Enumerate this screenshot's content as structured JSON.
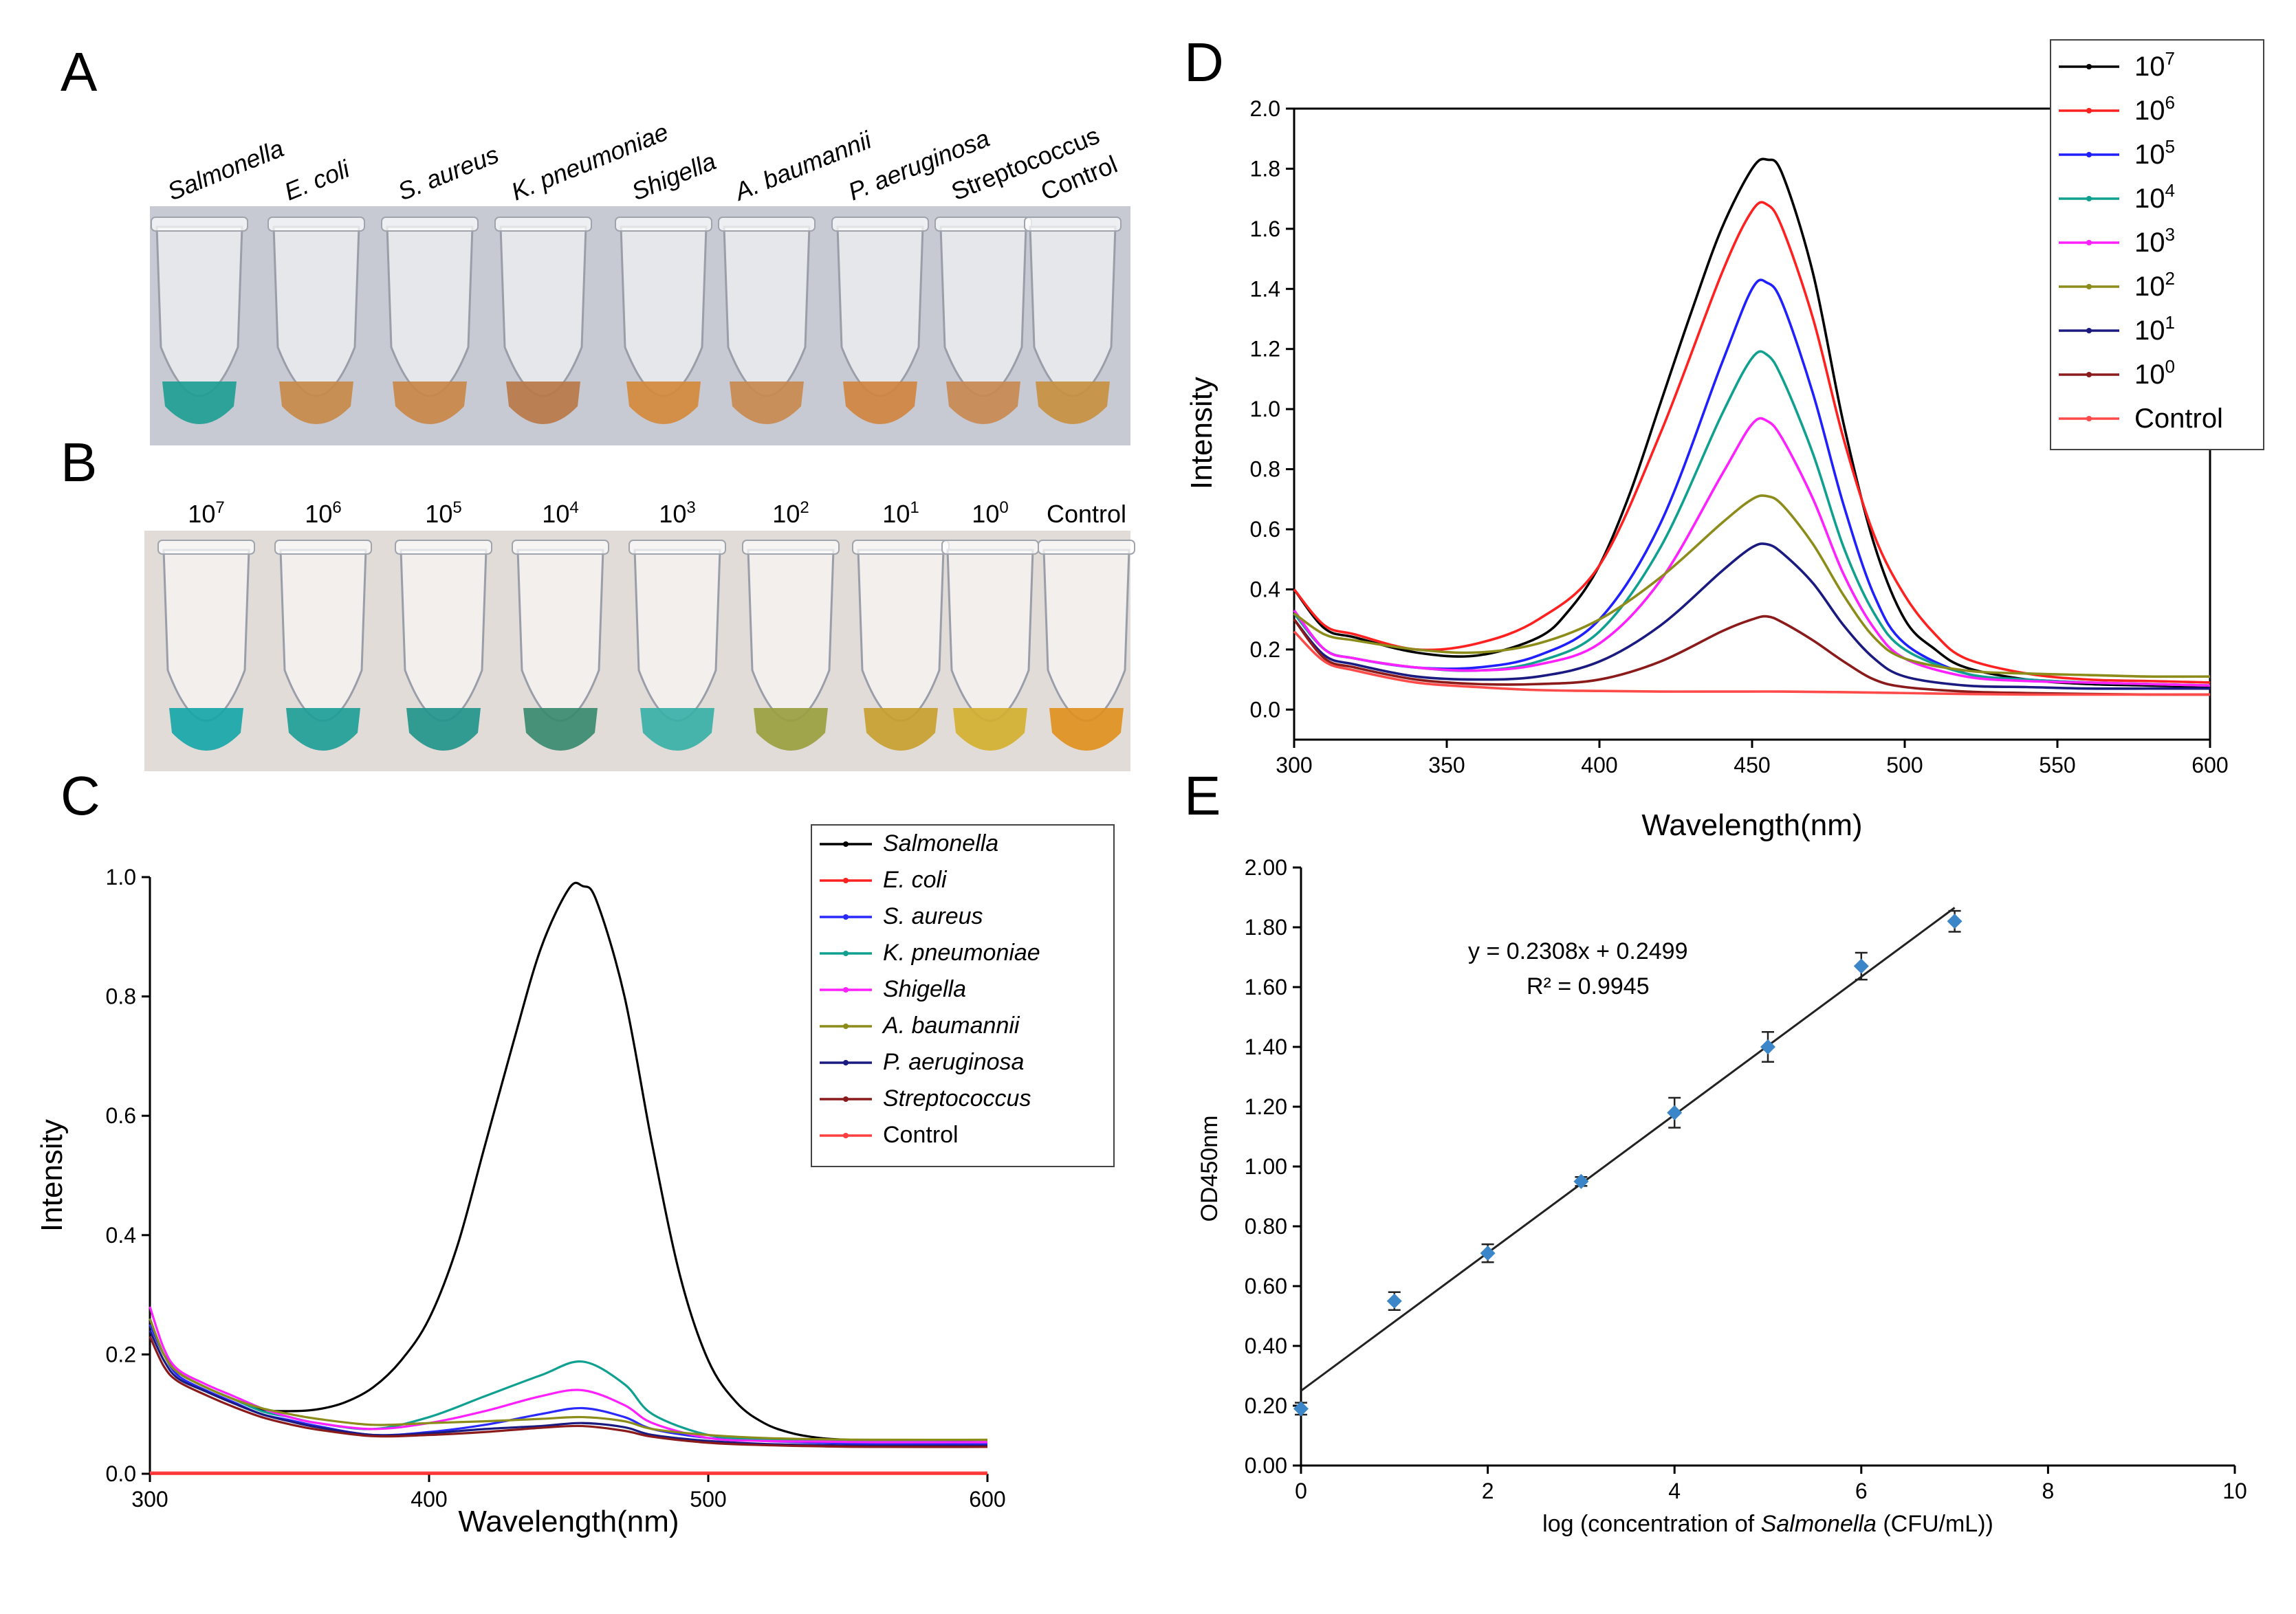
{
  "panel_labels": {
    "A": "A",
    "B": "B",
    "C": "C",
    "D": "D",
    "E": "E"
  },
  "photoA": {
    "labels": [
      "Salmonella",
      "E. coli",
      "S. aureus",
      "K. pneumoniae",
      "Shigella",
      "A. baumannii",
      "P. aeruginosa",
      "Streptococcus",
      "Control"
    ],
    "italic": [
      true,
      true,
      true,
      true,
      true,
      true,
      true,
      false,
      false
    ],
    "liquid_colors": [
      "#1e9e92",
      "#c88a4a",
      "#c98848",
      "#b97a48",
      "#d48a3c",
      "#c98a50",
      "#d08440",
      "#c88a52",
      "#c89040"
    ]
  },
  "photoB": {
    "bases": [
      "10",
      "10",
      "10",
      "10",
      "10",
      "10",
      "10",
      "10",
      "Control"
    ],
    "exponents": [
      "7",
      "6",
      "5",
      "4",
      "3",
      "2",
      "1",
      "0",
      ""
    ],
    "liquid_colors": [
      "#17a6a8",
      "#1e9e98",
      "#22958c",
      "#3a8a70",
      "#3ab0a8",
      "#9aa040",
      "#c8a030",
      "#d4b030",
      "#e09020"
    ]
  },
  "chart_data": [
    {
      "id": "C",
      "type": "line",
      "xlabel": "Wavelength(nm)",
      "ylabel": "Intensity",
      "xlim": [
        300,
        600
      ],
      "ylim": [
        0.0,
        1.0
      ],
      "xticks": [
        "300",
        "400",
        "500",
        "600"
      ],
      "yticks": [
        "0.0",
        "0.2",
        "0.4",
        "0.6",
        "0.8",
        "1.0"
      ],
      "legend_position": "top-right",
      "series": [
        {
          "name": "Salmonella",
          "italic": true,
          "color": "#000000",
          "x": [
            300,
            305,
            310,
            320,
            330,
            340,
            350,
            360,
            370,
            380,
            390,
            400,
            410,
            420,
            430,
            440,
            450,
            455,
            460,
            470,
            480,
            490,
            500,
            510,
            520,
            530,
            540,
            550,
            560,
            580,
            600
          ],
          "y": [
            0.25,
            0.2,
            0.17,
            0.145,
            0.125,
            0.108,
            0.105,
            0.108,
            0.12,
            0.145,
            0.19,
            0.26,
            0.38,
            0.55,
            0.72,
            0.88,
            0.98,
            0.985,
            0.96,
            0.8,
            0.55,
            0.33,
            0.19,
            0.12,
            0.085,
            0.068,
            0.06,
            0.057,
            0.055,
            0.054,
            0.053
          ]
        },
        {
          "name": "E. coli",
          "italic": true,
          "color": "#ff2020",
          "x": [
            300,
            600
          ],
          "y": [
            0.0,
            0.0
          ]
        },
        {
          "name": "S. aureus",
          "italic": true,
          "color": "#2a2aff",
          "x": [
            300,
            305,
            310,
            320,
            330,
            340,
            350,
            360,
            380,
            400,
            420,
            440,
            455,
            470,
            480,
            500,
            520,
            540,
            560,
            600
          ],
          "y": [
            0.25,
            0.2,
            0.165,
            0.14,
            0.12,
            0.1,
            0.09,
            0.08,
            0.065,
            0.07,
            0.082,
            0.1,
            0.11,
            0.095,
            0.075,
            0.06,
            0.055,
            0.052,
            0.05,
            0.05
          ]
        },
        {
          "name": "K. pneumoniae",
          "italic": true,
          "color": "#10a090",
          "x": [
            300,
            305,
            310,
            320,
            330,
            340,
            350,
            360,
            380,
            400,
            420,
            440,
            455,
            470,
            480,
            500,
            520,
            540,
            560,
            600
          ],
          "y": [
            0.26,
            0.2,
            0.17,
            0.145,
            0.125,
            0.105,
            0.095,
            0.085,
            0.075,
            0.095,
            0.13,
            0.165,
            0.188,
            0.15,
            0.1,
            0.065,
            0.058,
            0.055,
            0.054,
            0.053
          ]
        },
        {
          "name": "Shigella",
          "italic": true,
          "color": "#ff20ff",
          "x": [
            300,
            305,
            310,
            320,
            330,
            340,
            350,
            360,
            380,
            400,
            420,
            440,
            455,
            470,
            480,
            500,
            520,
            540,
            560,
            600
          ],
          "y": [
            0.28,
            0.21,
            0.175,
            0.15,
            0.13,
            0.11,
            0.095,
            0.085,
            0.075,
            0.085,
            0.105,
            0.13,
            0.14,
            0.115,
            0.085,
            0.06,
            0.055,
            0.054,
            0.053,
            0.053
          ]
        },
        {
          "name": "A. baumannii",
          "italic": true,
          "color": "#8c8c1a",
          "x": [
            300,
            305,
            310,
            320,
            330,
            340,
            350,
            360,
            380,
            400,
            420,
            440,
            455,
            470,
            480,
            500,
            520,
            540,
            560,
            600
          ],
          "y": [
            0.26,
            0.2,
            0.17,
            0.145,
            0.125,
            0.11,
            0.1,
            0.092,
            0.082,
            0.085,
            0.088,
            0.092,
            0.095,
            0.088,
            0.075,
            0.065,
            0.06,
            0.058,
            0.057,
            0.057
          ]
        },
        {
          "name": "P. aeruginosa",
          "italic": true,
          "color": "#1a1a80",
          "x": [
            300,
            305,
            310,
            320,
            330,
            340,
            350,
            360,
            380,
            400,
            420,
            440,
            455,
            470,
            480,
            500,
            520,
            540,
            560,
            600
          ],
          "y": [
            0.24,
            0.19,
            0.16,
            0.138,
            0.118,
            0.1,
            0.088,
            0.078,
            0.065,
            0.068,
            0.075,
            0.08,
            0.085,
            0.078,
            0.065,
            0.055,
            0.05,
            0.048,
            0.047,
            0.047
          ]
        },
        {
          "name": "Streptococcus",
          "italic": true,
          "color": "#8b1a1a",
          "x": [
            300,
            305,
            310,
            320,
            330,
            340,
            350,
            360,
            380,
            400,
            420,
            440,
            455,
            470,
            480,
            500,
            520,
            540,
            560,
            600
          ],
          "y": [
            0.23,
            0.18,
            0.155,
            0.132,
            0.112,
            0.095,
            0.083,
            0.074,
            0.063,
            0.065,
            0.07,
            0.077,
            0.08,
            0.072,
            0.062,
            0.052,
            0.048,
            0.046,
            0.045,
            0.045
          ]
        },
        {
          "name": "Control",
          "italic": false,
          "color": "#ff4040",
          "x": [
            300,
            600
          ],
          "y": [
            0.002,
            0.002
          ]
        }
      ]
    },
    {
      "id": "D",
      "type": "line",
      "xlabel": "Wavelength(nm)",
      "ylabel": "Intensity",
      "xlim": [
        300,
        600
      ],
      "ylim": [
        -0.1,
        2.0
      ],
      "xticks": [
        "300",
        "350",
        "400",
        "450",
        "500",
        "550",
        "600"
      ],
      "yticks": [
        "0.0",
        "0.2",
        "0.4",
        "0.6",
        "0.8",
        "1.0",
        "1.2",
        "1.4",
        "1.6",
        "1.8",
        "2.0"
      ],
      "legend_position": "top-right outside",
      "series": [
        {
          "name": "10",
          "sup": "7",
          "color": "#000000",
          "x": [
            300,
            310,
            320,
            340,
            360,
            380,
            390,
            400,
            410,
            420,
            430,
            440,
            450,
            455,
            460,
            470,
            480,
            490,
            500,
            510,
            520,
            540,
            560,
            580,
            600
          ],
          "y": [
            0.4,
            0.27,
            0.24,
            0.19,
            0.18,
            0.24,
            0.33,
            0.48,
            0.72,
            1.02,
            1.32,
            1.6,
            1.8,
            1.83,
            1.78,
            1.45,
            0.95,
            0.55,
            0.3,
            0.2,
            0.14,
            0.1,
            0.085,
            0.08,
            0.075
          ]
        },
        {
          "name": "10",
          "sup": "6",
          "color": "#ff2020",
          "x": [
            300,
            310,
            320,
            340,
            360,
            380,
            400,
            420,
            440,
            450,
            455,
            460,
            470,
            480,
            490,
            500,
            510,
            520,
            540,
            560,
            580,
            600
          ],
          "y": [
            0.4,
            0.28,
            0.25,
            0.2,
            0.22,
            0.3,
            0.48,
            0.92,
            1.45,
            1.66,
            1.68,
            1.6,
            1.3,
            0.9,
            0.58,
            0.38,
            0.25,
            0.17,
            0.12,
            0.1,
            0.095,
            0.09
          ]
        },
        {
          "name": "10",
          "sup": "5",
          "color": "#2020ff",
          "x": [
            300,
            310,
            320,
            340,
            360,
            380,
            400,
            420,
            440,
            450,
            455,
            460,
            470,
            480,
            490,
            500,
            520,
            540,
            560,
            580,
            600
          ],
          "y": [
            0.33,
            0.2,
            0.17,
            0.14,
            0.14,
            0.18,
            0.3,
            0.62,
            1.15,
            1.4,
            1.42,
            1.35,
            1.05,
            0.68,
            0.38,
            0.22,
            0.12,
            0.1,
            0.09,
            0.085,
            0.08
          ]
        },
        {
          "name": "10",
          "sup": "4",
          "color": "#10a090",
          "x": [
            300,
            310,
            320,
            340,
            360,
            380,
            400,
            420,
            440,
            450,
            455,
            460,
            470,
            480,
            490,
            500,
            520,
            540,
            560,
            580,
            600
          ],
          "y": [
            0.32,
            0.2,
            0.17,
            0.14,
            0.13,
            0.16,
            0.26,
            0.54,
            0.98,
            1.17,
            1.18,
            1.1,
            0.85,
            0.54,
            0.32,
            0.2,
            0.12,
            0.1,
            0.09,
            0.085,
            0.08
          ]
        },
        {
          "name": "10",
          "sup": "3",
          "color": "#ff20ff",
          "x": [
            300,
            310,
            320,
            340,
            360,
            380,
            400,
            420,
            440,
            450,
            455,
            460,
            470,
            480,
            490,
            500,
            520,
            540,
            560,
            580,
            600
          ],
          "y": [
            0.33,
            0.2,
            0.17,
            0.14,
            0.13,
            0.15,
            0.22,
            0.43,
            0.78,
            0.95,
            0.96,
            0.9,
            0.7,
            0.45,
            0.27,
            0.17,
            0.11,
            0.095,
            0.09,
            0.085,
            0.08
          ]
        },
        {
          "name": "10",
          "sup": "2",
          "color": "#8c8c1a",
          "x": [
            300,
            310,
            320,
            340,
            360,
            380,
            400,
            420,
            440,
            450,
            455,
            460,
            470,
            480,
            490,
            500,
            520,
            540,
            560,
            580,
            600
          ],
          "y": [
            0.32,
            0.25,
            0.23,
            0.2,
            0.19,
            0.22,
            0.3,
            0.44,
            0.62,
            0.7,
            0.71,
            0.68,
            0.55,
            0.38,
            0.24,
            0.17,
            0.13,
            0.12,
            0.115,
            0.11,
            0.11
          ]
        },
        {
          "name": "10",
          "sup": "1",
          "color": "#1a1a80",
          "x": [
            300,
            310,
            320,
            340,
            360,
            380,
            400,
            420,
            440,
            450,
            455,
            460,
            470,
            480,
            490,
            500,
            520,
            540,
            560,
            580,
            600
          ],
          "y": [
            0.3,
            0.18,
            0.15,
            0.11,
            0.1,
            0.11,
            0.16,
            0.28,
            0.46,
            0.54,
            0.55,
            0.52,
            0.42,
            0.28,
            0.17,
            0.11,
            0.08,
            0.075,
            0.07,
            0.07,
            0.07
          ]
        },
        {
          "name": "10",
          "sup": "0",
          "color": "#8b1a1a",
          "x": [
            300,
            310,
            320,
            340,
            360,
            380,
            400,
            420,
            440,
            450,
            455,
            460,
            470,
            480,
            490,
            500,
            520,
            540,
            560,
            580,
            600
          ],
          "y": [
            0.3,
            0.17,
            0.14,
            0.1,
            0.085,
            0.085,
            0.1,
            0.16,
            0.26,
            0.3,
            0.31,
            0.29,
            0.23,
            0.16,
            0.1,
            0.075,
            0.06,
            0.055,
            0.052,
            0.05,
            0.05
          ]
        },
        {
          "name": "Control",
          "sup": "",
          "color": "#ff4a4a",
          "x": [
            300,
            310,
            320,
            340,
            360,
            380,
            400,
            420,
            440,
            460,
            480,
            500,
            520,
            540,
            560,
            600
          ],
          "y": [
            0.26,
            0.16,
            0.13,
            0.09,
            0.075,
            0.065,
            0.062,
            0.06,
            0.06,
            0.06,
            0.058,
            0.055,
            0.052,
            0.05,
            0.05,
            0.05
          ]
        }
      ]
    },
    {
      "id": "E",
      "type": "scatter",
      "xlabel_parts": [
        "log (concentration of ",
        "Salmonella",
        " (CFU/mL))"
      ],
      "ylabel": "OD450nm",
      "xlim": [
        0,
        10
      ],
      "ylim": [
        0.0,
        2.0
      ],
      "xticks": [
        "0",
        "2",
        "4",
        "6",
        "8",
        "10"
      ],
      "yticks": [
        "0.00",
        "0.20",
        "0.40",
        "0.60",
        "0.80",
        "1.00",
        "1.20",
        "1.40",
        "1.60",
        "1.80",
        "2.00"
      ],
      "points": {
        "x": [
          0,
          1,
          2,
          3,
          4,
          5,
          6,
          7
        ],
        "y": [
          0.19,
          0.55,
          0.71,
          0.95,
          1.18,
          1.4,
          1.67,
          1.82
        ],
        "err": [
          0.02,
          0.03,
          0.03,
          0.015,
          0.05,
          0.05,
          0.045,
          0.035
        ]
      },
      "fit": {
        "slope": 0.2308,
        "intercept": 0.2499,
        "x_range": [
          0,
          7
        ]
      },
      "equation": "y = 0.2308x + 0.2499",
      "r2": "R² = 0.9945",
      "point_color": "#3a86c8"
    }
  ]
}
